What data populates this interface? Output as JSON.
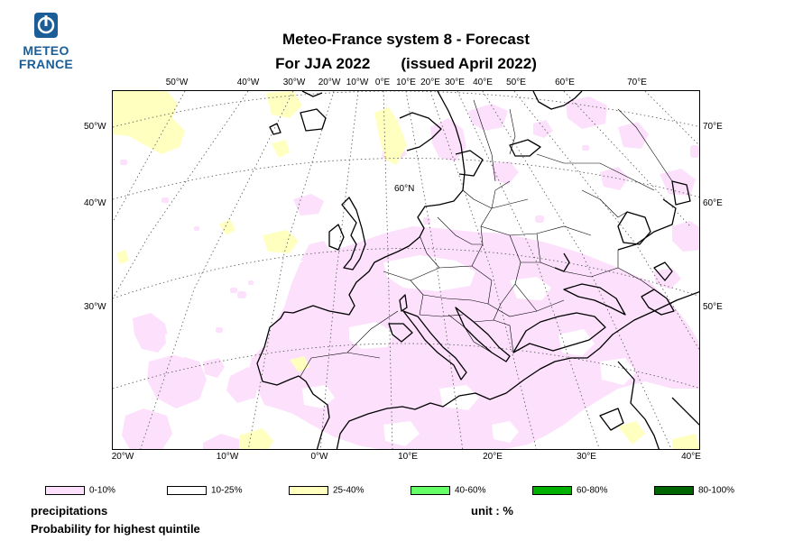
{
  "logo": {
    "line1": "METEO",
    "line2": "FRANCE"
  },
  "title": {
    "line1": "Meteo-France system 8  -  Forecast",
    "line2a": "For JJA 2022",
    "line2b": "(issued April 2022)"
  },
  "top_lon_labels": [
    "50°W",
    "40°W",
    "30°W",
    "20°W",
    "10°W",
    "0°E",
    "10°E",
    "20°E",
    "30°E",
    "40°E",
    "50°E",
    "60°E",
    "70°E"
  ],
  "bottom_lon_labels": [
    "20°W",
    "10°W",
    "0°W",
    "10°E",
    "20°E",
    "30°E",
    "40°E"
  ],
  "left_lat_labels": [
    "50°W",
    "40°W",
    "30°W"
  ],
  "right_lat_labels": [
    "70°E",
    "60°E",
    "50°E"
  ],
  "inner_label": "60°N",
  "legend": [
    {
      "label": "0-10%",
      "color": "#fce0fc"
    },
    {
      "label": "10-25%",
      "color": "#ffffff"
    },
    {
      "label": "25-40%",
      "color": "#ffffc0"
    },
    {
      "label": "40-60%",
      "color": "#66ff66"
    },
    {
      "label": "60-80%",
      "color": "#00b000"
    },
    {
      "label": "80-100%",
      "color": "#006400"
    }
  ],
  "footer": {
    "variable": "precipitations",
    "description": "Probability for highest quintile",
    "unit": "unit : %"
  }
}
